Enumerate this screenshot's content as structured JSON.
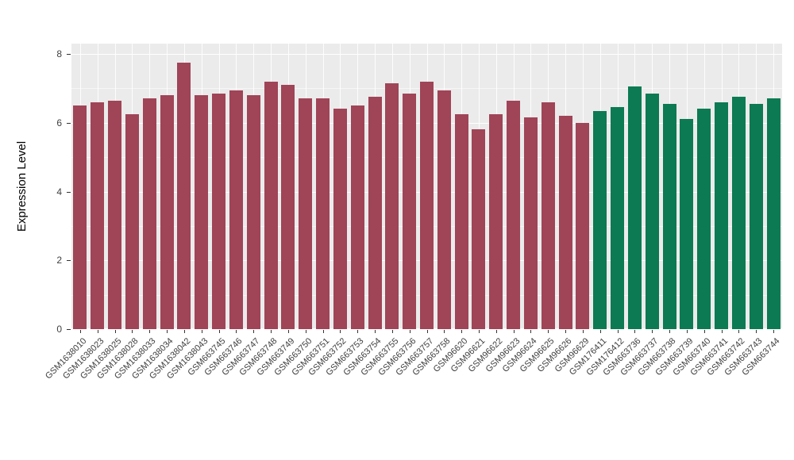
{
  "figure": {
    "background": "#FFFFFF"
  },
  "chart_data": {
    "type": "bar",
    "title": "",
    "xlabel": "",
    "ylabel": "Expression Level",
    "ylim": [
      0,
      8.3
    ],
    "yticks": [
      0,
      2,
      4,
      6,
      8
    ],
    "yticks_minor": [
      1,
      3,
      5,
      7
    ],
    "grid": "on",
    "legend_position": "none",
    "panel_bg": "#EBEBEB",
    "grid_color": "#FFFFFF",
    "group_colors": [
      "#A04458",
      "#0C7A53"
    ],
    "categories": [
      "GSM1638010",
      "GSM1638023",
      "GSM1638025",
      "GSM1638028",
      "GSM1638033",
      "GSM1638034",
      "GSM1638042",
      "GSM1638043",
      "GSM663745",
      "GSM663746",
      "GSM663747",
      "GSM663748",
      "GSM663749",
      "GSM663750",
      "GSM663751",
      "GSM663752",
      "GSM663753",
      "GSM663754",
      "GSM663755",
      "GSM663756",
      "GSM663757",
      "GSM663758",
      "GSM96620",
      "GSM96621",
      "GSM96622",
      "GSM96623",
      "GSM96624",
      "GSM96625",
      "GSM96626",
      "GSM96629",
      "GSM176411",
      "GSM176412",
      "GSM663736",
      "GSM663737",
      "GSM663738",
      "GSM663739",
      "GSM663740",
      "GSM663741",
      "GSM663742",
      "GSM663743",
      "GSM663744"
    ],
    "values": [
      6.5,
      6.6,
      6.65,
      6.25,
      6.7,
      6.8,
      7.75,
      6.8,
      6.85,
      6.95,
      6.8,
      7.2,
      7.1,
      6.7,
      6.7,
      6.4,
      6.5,
      6.75,
      7.15,
      6.85,
      7.2,
      6.95,
      6.25,
      5.8,
      6.25,
      6.65,
      6.15,
      6.6,
      6.2,
      6.0,
      6.35,
      6.45,
      7.05,
      6.85,
      6.55,
      6.1,
      6.4,
      6.6,
      6.75,
      6.55,
      6.7
    ],
    "group_index": [
      0,
      0,
      0,
      0,
      0,
      0,
      0,
      0,
      0,
      0,
      0,
      0,
      0,
      0,
      0,
      0,
      0,
      0,
      0,
      0,
      0,
      0,
      0,
      0,
      0,
      0,
      0,
      0,
      0,
      0,
      1,
      1,
      1,
      1,
      1,
      1,
      1,
      1,
      1,
      1,
      1
    ]
  }
}
